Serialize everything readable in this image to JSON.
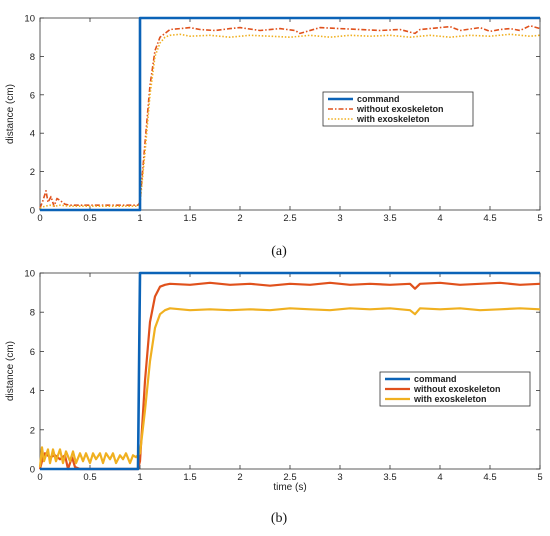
{
  "caption_a": "(a)",
  "caption_b": "(b)",
  "colors": {
    "command": "#0b63b7",
    "without_exoskeleton": "#e0511c",
    "with_exoskeleton": "#f0b020",
    "axis": "#333333"
  },
  "chart_data": [
    {
      "id": "a",
      "type": "line",
      "xlabel": "",
      "ylabel": "distance (cm)",
      "xlim": [
        0,
        5
      ],
      "ylim": [
        0,
        10
      ],
      "x_ticks": [
        0,
        0.5,
        1,
        1.5,
        2,
        2.5,
        3,
        3.5,
        4,
        4.5,
        5
      ],
      "x_tick_labels": [
        "0",
        "0.5",
        "1",
        "1.5",
        "2",
        "2.5",
        "3",
        "3.5",
        "4",
        "4.5",
        "5"
      ],
      "y_ticks": [
        0,
        2,
        4,
        6,
        8,
        10
      ],
      "y_tick_labels": [
        "0",
        "2",
        "4",
        "6",
        "8",
        "10"
      ],
      "grid": false,
      "legend_position": "center-right",
      "series": [
        {
          "name": "command",
          "style": "solid",
          "x": [
            0,
            1,
            1,
            5
          ],
          "y": [
            0,
            0,
            10,
            10
          ]
        },
        {
          "name": "without exoskeleton",
          "style": "dashdot",
          "x": [
            0,
            0.03,
            0.06,
            0.08,
            0.11,
            0.14,
            0.17,
            0.2,
            0.25,
            0.3,
            0.4,
            0.6,
            0.8,
            0.98,
            1.0,
            1.05,
            1.1,
            1.15,
            1.2,
            1.25,
            1.3,
            1.4,
            1.5,
            1.6,
            1.75,
            1.9,
            2.0,
            2.2,
            2.4,
            2.55,
            2.6,
            2.8,
            3.0,
            3.2,
            3.4,
            3.6,
            3.75,
            3.8,
            4.0,
            4.1,
            4.2,
            4.4,
            4.5,
            4.6,
            4.7,
            4.8,
            4.9,
            5.0
          ],
          "y": [
            0.1,
            0.5,
            1.0,
            0.4,
            0.7,
            0.2,
            0.6,
            0.5,
            0.3,
            0.25,
            0.25,
            0.25,
            0.25,
            0.25,
            0.4,
            3.5,
            6.5,
            8.3,
            9.0,
            9.2,
            9.4,
            9.45,
            9.5,
            9.4,
            9.35,
            9.45,
            9.5,
            9.35,
            9.45,
            9.35,
            9.2,
            9.5,
            9.45,
            9.4,
            9.35,
            9.4,
            9.2,
            9.4,
            9.5,
            9.55,
            9.35,
            9.5,
            9.3,
            9.4,
            9.45,
            9.35,
            9.6,
            9.45
          ]
        },
        {
          "name": "with exoskeleton",
          "style": "dotted",
          "x": [
            0,
            0.05,
            0.1,
            0.15,
            0.2,
            0.3,
            0.5,
            0.8,
            0.98,
            1.0,
            1.05,
            1.1,
            1.15,
            1.2,
            1.25,
            1.3,
            1.4,
            1.5,
            1.7,
            1.9,
            2.1,
            2.3,
            2.5,
            2.7,
            2.9,
            3.1,
            3.3,
            3.5,
            3.7,
            3.9,
            4.1,
            4.3,
            4.5,
            4.7,
            4.9,
            5.0
          ],
          "y": [
            0.1,
            0.2,
            0.25,
            0.2,
            0.25,
            0.2,
            0.2,
            0.2,
            0.2,
            0.3,
            3.0,
            6.0,
            8.0,
            8.7,
            9.0,
            9.1,
            9.15,
            9.05,
            9.1,
            9.0,
            9.1,
            9.05,
            9.0,
            9.1,
            9.0,
            9.1,
            9.05,
            9.1,
            9.0,
            9.1,
            9.0,
            9.1,
            9.05,
            9.15,
            9.05,
            9.1
          ]
        }
      ]
    },
    {
      "id": "b",
      "type": "line",
      "xlabel": "time (s)",
      "ylabel": "distance (cm)",
      "xlim": [
        0,
        5
      ],
      "ylim": [
        0,
        10
      ],
      "x_ticks": [
        0,
        0.5,
        1,
        1.5,
        2,
        2.5,
        3,
        3.5,
        4,
        4.5,
        5
      ],
      "x_tick_labels": [
        "0",
        "0.5",
        "1",
        "1.5",
        "2",
        "2.5",
        "3",
        "3.5",
        "4",
        "4.5",
        "5"
      ],
      "y_ticks": [
        0,
        2,
        4,
        6,
        8,
        10
      ],
      "y_tick_labels": [
        "0",
        "2",
        "4",
        "6",
        "8",
        "10"
      ],
      "grid": false,
      "legend_position": "center-right",
      "series": [
        {
          "name": "command",
          "style": "solid",
          "x": [
            0,
            0.98,
            1.0,
            5
          ],
          "y": [
            0,
            0,
            10,
            10
          ]
        },
        {
          "name": "without exoskeleton",
          "style": "solid",
          "x": [
            0,
            0.03,
            0.05,
            0.1,
            0.15,
            0.2,
            0.25,
            0.28,
            0.32,
            0.35,
            0.4,
            0.45,
            0.6,
            0.98,
            1.0,
            1.05,
            1.1,
            1.15,
            1.2,
            1.25,
            1.3,
            1.5,
            1.7,
            1.9,
            2.1,
            2.3,
            2.5,
            2.7,
            2.9,
            3.1,
            3.3,
            3.5,
            3.7,
            3.75,
            3.8,
            4.0,
            4.2,
            4.4,
            4.6,
            4.8,
            5.0
          ],
          "y": [
            0,
            0.6,
            0.8,
            0.6,
            0.7,
            0.5,
            0.7,
            0.0,
            0.6,
            0.1,
            0.0,
            0.0,
            0.0,
            0.0,
            0.4,
            4.5,
            7.5,
            8.8,
            9.3,
            9.4,
            9.45,
            9.4,
            9.5,
            9.4,
            9.45,
            9.35,
            9.45,
            9.4,
            9.5,
            9.4,
            9.45,
            9.4,
            9.45,
            9.2,
            9.45,
            9.5,
            9.4,
            9.45,
            9.5,
            9.4,
            9.45
          ]
        },
        {
          "name": "with exoskeleton",
          "style": "solid",
          "x": [
            0,
            0.02,
            0.04,
            0.08,
            0.1,
            0.13,
            0.16,
            0.2,
            0.23,
            0.26,
            0.3,
            0.33,
            0.36,
            0.4,
            0.43,
            0.46,
            0.5,
            0.53,
            0.56,
            0.6,
            0.63,
            0.66,
            0.7,
            0.73,
            0.76,
            0.8,
            0.83,
            0.86,
            0.9,
            0.93,
            0.96,
            1.0,
            1.05,
            1.1,
            1.15,
            1.2,
            1.25,
            1.3,
            1.5,
            1.7,
            1.9,
            2.1,
            2.3,
            2.5,
            2.7,
            2.9,
            3.1,
            3.3,
            3.5,
            3.7,
            3.75,
            3.8,
            4.0,
            4.2,
            4.4,
            4.6,
            4.8,
            5.0
          ],
          "y": [
            0.1,
            1.1,
            0.4,
            1.0,
            0.3,
            1.0,
            0.4,
            1.0,
            0.3,
            0.9,
            0.4,
            0.9,
            0.3,
            0.8,
            0.4,
            0.8,
            0.3,
            0.8,
            0.5,
            0.8,
            0.3,
            0.8,
            0.5,
            0.8,
            0.3,
            0.7,
            0.5,
            0.8,
            0.3,
            0.7,
            0.6,
            0.8,
            3.0,
            5.5,
            7.2,
            7.9,
            8.1,
            8.2,
            8.1,
            8.15,
            8.1,
            8.15,
            8.1,
            8.2,
            8.15,
            8.1,
            8.2,
            8.15,
            8.2,
            8.1,
            7.9,
            8.2,
            8.15,
            8.2,
            8.1,
            8.15,
            8.2,
            8.15
          ]
        }
      ]
    }
  ]
}
